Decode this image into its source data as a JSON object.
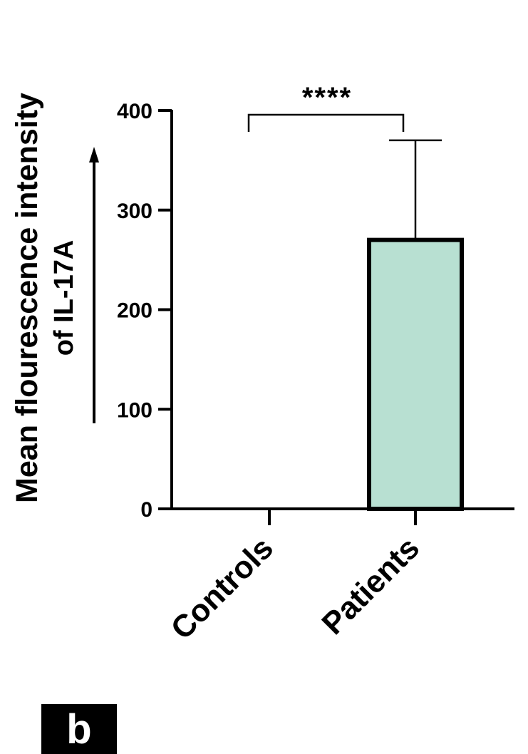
{
  "chart_data": {
    "type": "bar",
    "categories": [
      "Controls",
      "Patients"
    ],
    "values": [
      0,
      270
    ],
    "error_upper": [
      0,
      370
    ],
    "ylabel": "Mean flourescence intensity",
    "ylabel_line2": "of IL-17A",
    "ylim": [
      0,
      400
    ],
    "yticks": [
      0,
      100,
      200,
      300,
      400
    ],
    "bar_colors": [
      "#ffffff",
      "#b8e0d2"
    ],
    "significance": "****",
    "grid": false
  },
  "panel_label": "b"
}
